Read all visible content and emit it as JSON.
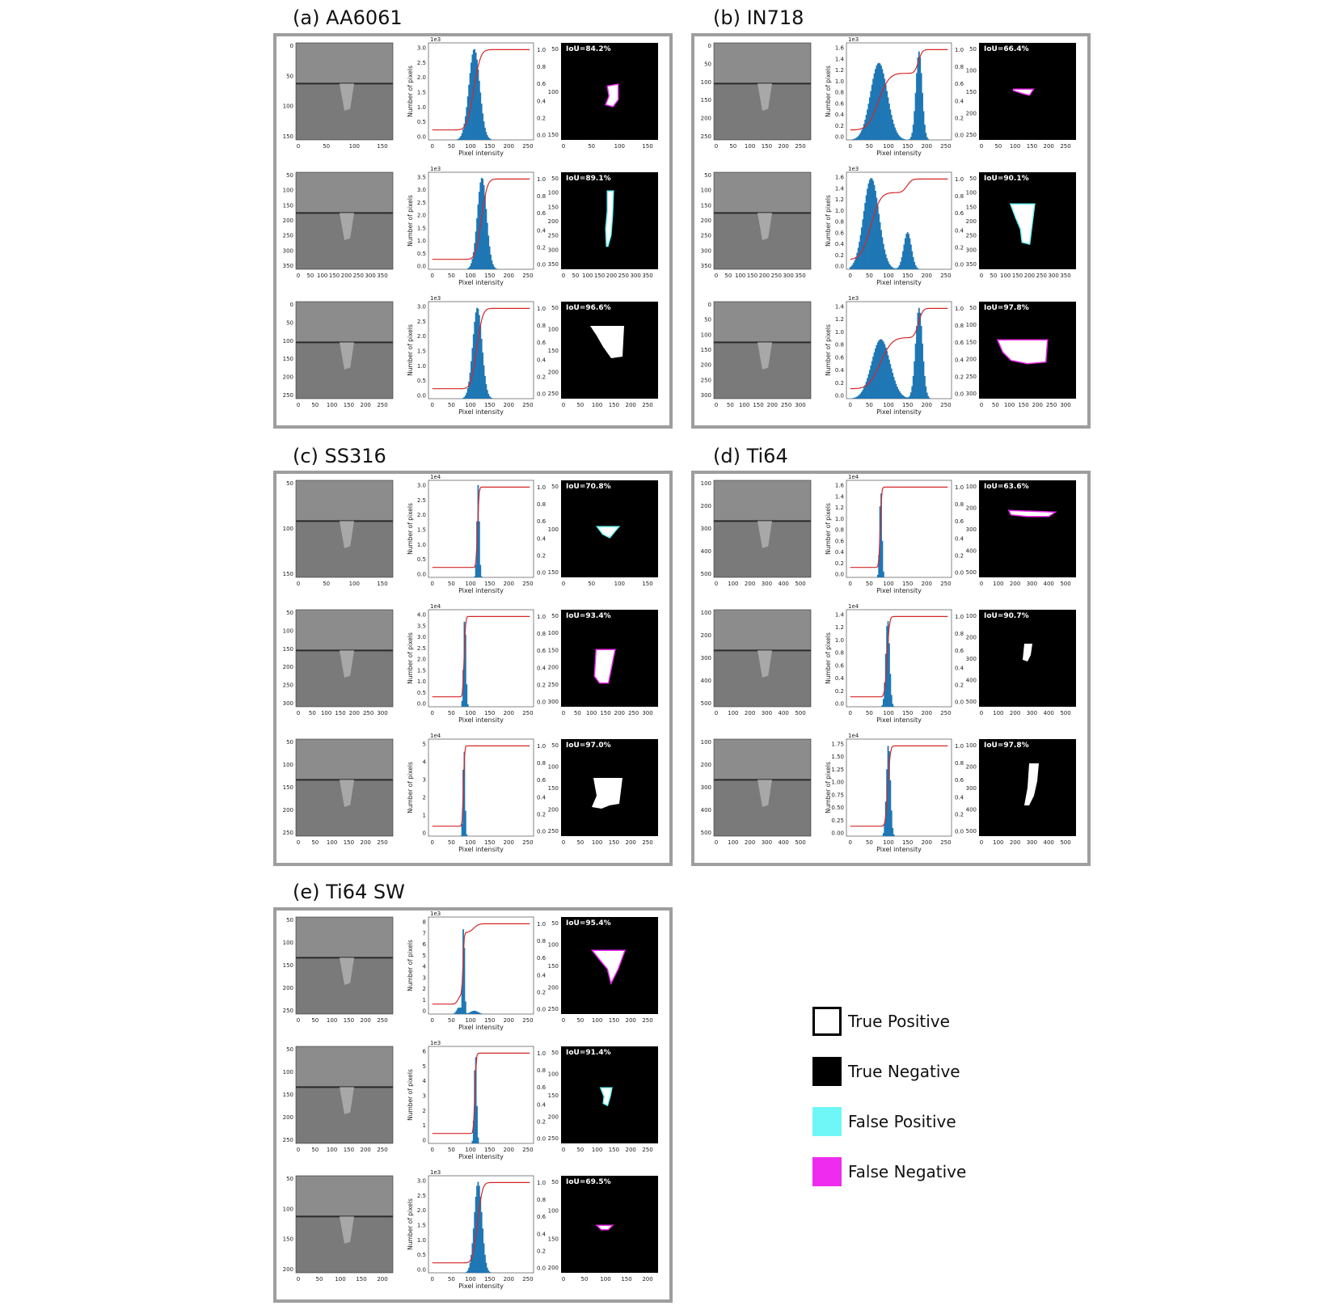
{
  "panels": [
    {
      "title": "(a) AA6061",
      "rows": [
        {
          "img_ticks_y": [
            "0",
            "50",
            "100",
            "150"
          ],
          "img_ticks_x": [
            "0",
            "50",
            "100",
            "150"
          ],
          "hist_scale": "1e3",
          "hist_yticks": [
            "0.0",
            "0.5",
            "1.0",
            "1.5",
            "2.0",
            "2.5",
            "3.0"
          ],
          "iou": "IoU=84.2%",
          "mask_ticks_y": [
            "50",
            "100",
            "150"
          ],
          "mask_ticks_x": [
            "0",
            "50",
            "100",
            "150"
          ]
        },
        {
          "img_ticks_y": [
            "50",
            "100",
            "150",
            "200",
            "250",
            "300",
            "350"
          ],
          "img_ticks_x": [
            "0",
            "50",
            "100",
            "150",
            "200",
            "250",
            "300",
            "350"
          ],
          "hist_scale": "1e3",
          "hist_yticks": [
            "0.0",
            "0.5",
            "1.0",
            "1.5",
            "2.0",
            "2.5",
            "3.0",
            "3.5"
          ],
          "iou": "IoU=89.1%",
          "mask_ticks_y": [
            "50",
            "100",
            "150",
            "200",
            "250",
            "300",
            "350"
          ],
          "mask_ticks_x": [
            "0",
            "50",
            "100",
            "150",
            "200",
            "250",
            "300",
            "350"
          ]
        },
        {
          "img_ticks_y": [
            "0",
            "50",
            "100",
            "150",
            "200",
            "250"
          ],
          "img_ticks_x": [
            "0",
            "50",
            "100",
            "150",
            "200",
            "250"
          ],
          "hist_scale": "1e3",
          "hist_yticks": [
            "0.0",
            "0.5",
            "1.0",
            "1.5",
            "2.0",
            "2.5",
            "3.0"
          ],
          "iou": "IoU=96.6%",
          "mask_ticks_y": [
            "50",
            "100",
            "150",
            "200",
            "250"
          ],
          "mask_ticks_x": [
            "0",
            "50",
            "100",
            "150",
            "200",
            "250"
          ]
        }
      ]
    },
    {
      "title": "(b) IN718",
      "rows": [
        {
          "img_ticks_y": [
            "0",
            "50",
            "100",
            "150",
            "200",
            "250"
          ],
          "img_ticks_x": [
            "0",
            "50",
            "100",
            "150",
            "200",
            "250"
          ],
          "hist_scale": "1e3",
          "hist_yticks": [
            "0.0",
            "0.2",
            "0.4",
            "0.6",
            "0.8",
            "1.0",
            "1.2",
            "1.4",
            "1.6"
          ],
          "iou": "IoU=66.4%",
          "mask_ticks_y": [
            "50",
            "100",
            "150",
            "200",
            "250"
          ],
          "mask_ticks_x": [
            "0",
            "50",
            "100",
            "150",
            "200",
            "250"
          ]
        },
        {
          "img_ticks_y": [
            "50",
            "100",
            "150",
            "200",
            "250",
            "300",
            "350"
          ],
          "img_ticks_x": [
            "0",
            "50",
            "100",
            "150",
            "200",
            "250",
            "300",
            "350"
          ],
          "hist_scale": "1e3",
          "hist_yticks": [
            "0.0",
            "0.2",
            "0.4",
            "0.6",
            "0.8",
            "1.0",
            "1.2",
            "1.4",
            "1.6"
          ],
          "iou": "IoU=90.1%",
          "mask_ticks_y": [
            "50",
            "100",
            "150",
            "200",
            "250",
            "300",
            "350"
          ],
          "mask_ticks_x": [
            "0",
            "50",
            "100",
            "150",
            "200",
            "250",
            "300",
            "350"
          ]
        },
        {
          "img_ticks_y": [
            "0",
            "50",
            "100",
            "150",
            "200",
            "250",
            "300"
          ],
          "img_ticks_x": [
            "0",
            "50",
            "100",
            "150",
            "200",
            "250",
            "300"
          ],
          "hist_scale": "1e3",
          "hist_yticks": [
            "0.0",
            "0.2",
            "0.4",
            "0.6",
            "0.8",
            "1.0",
            "1.2",
            "1.4"
          ],
          "iou": "IoU=97.8%",
          "mask_ticks_y": [
            "50",
            "100",
            "150",
            "200",
            "250",
            "300"
          ],
          "mask_ticks_x": [
            "0",
            "50",
            "100",
            "150",
            "200",
            "250",
            "300"
          ]
        }
      ]
    },
    {
      "title": "(c) SS316",
      "rows": [
        {
          "img_ticks_y": [
            "50",
            "100",
            "150"
          ],
          "img_ticks_x": [
            "0",
            "50",
            "100",
            "150"
          ],
          "hist_scale": "1e4",
          "hist_yticks": [
            "0.0",
            "0.5",
            "1.0",
            "1.5",
            "2.0",
            "2.5",
            "3.0"
          ],
          "iou": "IoU=70.8%",
          "mask_ticks_y": [
            "50",
            "100",
            "150"
          ],
          "mask_ticks_x": [
            "0",
            "50",
            "100",
            "150"
          ]
        },
        {
          "img_ticks_y": [
            "50",
            "100",
            "150",
            "200",
            "250",
            "300"
          ],
          "img_ticks_x": [
            "0",
            "50",
            "100",
            "150",
            "200",
            "250",
            "300"
          ],
          "hist_scale": "1e4",
          "hist_yticks": [
            "0.0",
            "0.5",
            "1.0",
            "1.5",
            "2.0",
            "2.5",
            "3.0",
            "3.5",
            "4.0"
          ],
          "iou": "IoU=93.4%",
          "mask_ticks_y": [
            "50",
            "100",
            "150",
            "200",
            "250",
            "300"
          ],
          "mask_ticks_x": [
            "0",
            "50",
            "100",
            "150",
            "200",
            "250",
            "300"
          ]
        },
        {
          "img_ticks_y": [
            "50",
            "100",
            "150",
            "200",
            "250"
          ],
          "img_ticks_x": [
            "0",
            "50",
            "100",
            "150",
            "200",
            "250"
          ],
          "hist_scale": "1e4",
          "hist_yticks": [
            "0",
            "1",
            "2",
            "3",
            "4",
            "5"
          ],
          "iou": "IoU=97.0%",
          "mask_ticks_y": [
            "50",
            "100",
            "150",
            "200",
            "250"
          ],
          "mask_ticks_x": [
            "0",
            "50",
            "100",
            "150",
            "200",
            "250"
          ]
        }
      ]
    },
    {
      "title": "(d) Ti64",
      "rows": [
        {
          "img_ticks_y": [
            "100",
            "200",
            "300",
            "400",
            "500"
          ],
          "img_ticks_x": [
            "0",
            "100",
            "200",
            "300",
            "400",
            "500"
          ],
          "hist_scale": "1e4",
          "hist_yticks": [
            "0.0",
            "0.2",
            "0.4",
            "0.6",
            "0.8",
            "1.0",
            "1.2",
            "1.4",
            "1.6"
          ],
          "iou": "IoU=63.6%",
          "mask_ticks_y": [
            "100",
            "200",
            "300",
            "400",
            "500"
          ],
          "mask_ticks_x": [
            "0",
            "100",
            "200",
            "300",
            "400",
            "500"
          ]
        },
        {
          "img_ticks_y": [
            "100",
            "200",
            "300",
            "400",
            "500"
          ],
          "img_ticks_x": [
            "0",
            "100",
            "200",
            "300",
            "400",
            "500"
          ],
          "hist_scale": "1e4",
          "hist_yticks": [
            "0.0",
            "0.2",
            "0.4",
            "0.6",
            "0.8",
            "1.0",
            "1.2",
            "1.4"
          ],
          "iou": "IoU=90.7%",
          "mask_ticks_y": [
            "100",
            "200",
            "300",
            "400",
            "500"
          ],
          "mask_ticks_x": [
            "0",
            "100",
            "200",
            "300",
            "400",
            "500"
          ]
        },
        {
          "img_ticks_y": [
            "100",
            "200",
            "300",
            "400",
            "500"
          ],
          "img_ticks_x": [
            "0",
            "100",
            "200",
            "300",
            "400",
            "500"
          ],
          "hist_scale": "1e4",
          "hist_yticks": [
            "0.00",
            "0.25",
            "0.50",
            "0.75",
            "1.00",
            "1.25",
            "1.50",
            "1.75"
          ],
          "iou": "IoU=97.8%",
          "mask_ticks_y": [
            "100",
            "200",
            "300",
            "400",
            "500"
          ],
          "mask_ticks_x": [
            "0",
            "100",
            "200",
            "300",
            "400",
            "500"
          ]
        }
      ]
    },
    {
      "title": "(e) Ti64 SW",
      "rows": [
        {
          "img_ticks_y": [
            "50",
            "100",
            "150",
            "200",
            "250"
          ],
          "img_ticks_x": [
            "0",
            "50",
            "100",
            "150",
            "200",
            "250"
          ],
          "hist_scale": "1e3",
          "hist_yticks": [
            "0",
            "1",
            "2",
            "3",
            "4",
            "5",
            "6",
            "7",
            "8"
          ],
          "iou": "IoU=95.4%",
          "mask_ticks_y": [
            "50",
            "100",
            "150",
            "200",
            "250"
          ],
          "mask_ticks_x": [
            "0",
            "50",
            "100",
            "150",
            "200",
            "250"
          ]
        },
        {
          "img_ticks_y": [
            "50",
            "100",
            "150",
            "200",
            "250"
          ],
          "img_ticks_x": [
            "0",
            "50",
            "100",
            "150",
            "200",
            "250"
          ],
          "hist_scale": "1e3",
          "hist_yticks": [
            "0",
            "1",
            "2",
            "3",
            "4",
            "5",
            "6"
          ],
          "iou": "IoU=91.4%",
          "mask_ticks_y": [
            "50",
            "100",
            "150",
            "200",
            "250"
          ],
          "mask_ticks_x": [
            "0",
            "50",
            "100",
            "150",
            "200",
            "250"
          ]
        },
        {
          "img_ticks_y": [
            "50",
            "100",
            "150",
            "200"
          ],
          "img_ticks_x": [
            "0",
            "50",
            "100",
            "150",
            "200"
          ],
          "hist_scale": "1e3",
          "hist_yticks": [
            "0.0",
            "0.5",
            "1.0",
            "1.5",
            "2.0",
            "2.5",
            "3.0"
          ],
          "iou": "IoU=69.5%",
          "mask_ticks_y": [
            "50",
            "100",
            "150",
            "200"
          ],
          "mask_ticks_x": [
            "0",
            "50",
            "100",
            "150",
            "200"
          ]
        }
      ]
    }
  ],
  "hist_common": {
    "xticks": [
      "0",
      "50",
      "100",
      "150",
      "200",
      "250"
    ],
    "xlabel": "Pixel intensity",
    "ylabel": "Number of pixels",
    "cdf_ticks": [
      "0.0",
      "0.2",
      "0.4",
      "0.6",
      "0.8",
      "1.0"
    ],
    "bar_color": "#1f77b4",
    "cdf_color": "#d62728"
  },
  "legend": [
    {
      "label": "True Positive",
      "color": "#ffffff"
    },
    {
      "label": "True Negative",
      "color": "#000000"
    },
    {
      "label": "False Positive",
      "color": "#6ff7f7"
    },
    {
      "label": "False Negative",
      "color": "#ee2bee"
    }
  ],
  "chart_data": [
    {
      "type": "bar",
      "title": "(a) AA6061",
      "xlabel": "Pixel intensity",
      "ylabel": "Number of pixels",
      "series": [
        {
          "peaks": [
            {
              "center": 110,
              "height": 3.0,
              "width": 14
            }
          ],
          "ylim": [
            0,
            3.2
          ]
        },
        {
          "peaks": [
            {
              "center": 130,
              "height": 3.5,
              "width": 12
            }
          ],
          "ylim": [
            0,
            3.7
          ]
        },
        {
          "peaks": [
            {
              "center": 118,
              "height": 3.1,
              "width": 12
            }
          ],
          "ylim": [
            0,
            3.3
          ]
        }
      ]
    },
    {
      "type": "bar",
      "title": "(b) IN718",
      "xlabel": "Pixel intensity",
      "ylabel": "Number of pixels",
      "series": [
        {
          "peaks": [
            {
              "center": 75,
              "height": 1.35,
              "width": 22
            },
            {
              "center": 180,
              "height": 1.55,
              "width": 8
            }
          ],
          "ylim": [
            0,
            1.7
          ]
        },
        {
          "peaks": [
            {
              "center": 55,
              "height": 1.6,
              "width": 20
            },
            {
              "center": 150,
              "height": 0.65,
              "width": 10
            }
          ],
          "ylim": [
            0,
            1.7
          ]
        },
        {
          "peaks": [
            {
              "center": 80,
              "height": 0.95,
              "width": 24
            },
            {
              "center": 180,
              "height": 1.45,
              "width": 9
            }
          ],
          "ylim": [
            0,
            1.55
          ]
        }
      ]
    },
    {
      "type": "bar",
      "title": "(c) SS316",
      "xlabel": "Pixel intensity",
      "ylabel": "Number of pixels",
      "series": [
        {
          "peaks": [
            {
              "center": 120,
              "height": 2.9,
              "width": 3
            }
          ],
          "ylim": [
            0,
            3.05
          ]
        },
        {
          "peaks": [
            {
              "center": 85,
              "height": 3.8,
              "width": 3
            }
          ],
          "ylim": [
            0,
            4.1
          ]
        },
        {
          "peaks": [
            {
              "center": 83,
              "height": 4.8,
              "width": 2.5
            }
          ],
          "ylim": [
            0,
            5.1
          ]
        }
      ]
    },
    {
      "type": "bar",
      "title": "(d) Ti64",
      "xlabel": "Pixel intensity",
      "ylabel": "Number of pixels",
      "series": [
        {
          "peaks": [
            {
              "center": 80,
              "height": 1.6,
              "width": 3
            }
          ],
          "ylim": [
            0,
            1.75
          ]
        },
        {
          "peaks": [
            {
              "center": 98,
              "height": 1.35,
              "width": 5
            }
          ],
          "ylim": [
            0,
            1.5
          ]
        },
        {
          "peaks": [
            {
              "center": 100,
              "height": 1.85,
              "width": 5
            }
          ],
          "ylim": [
            0,
            1.95
          ]
        }
      ]
    },
    {
      "type": "bar",
      "title": "(e) Ti64 SW",
      "xlabel": "Pixel intensity",
      "ylabel": "Number of pixels",
      "series": [
        {
          "peaks": [
            {
              "center": 82,
              "height": 8.2,
              "width": 2.5
            },
            {
              "center": 110,
              "height": 0.3,
              "width": 10
            },
            {
              "center": 70,
              "height": 0.6,
              "width": 6
            }
          ],
          "ylim": [
            0,
            8.8
          ]
        },
        {
          "peaks": [
            {
              "center": 113,
              "height": 6.2,
              "width": 3
            }
          ],
          "ylim": [
            0,
            6.6
          ]
        },
        {
          "peaks": [
            {
              "center": 120,
              "height": 3.0,
              "width": 10
            }
          ],
          "ylim": [
            0,
            3.2
          ]
        }
      ]
    }
  ]
}
